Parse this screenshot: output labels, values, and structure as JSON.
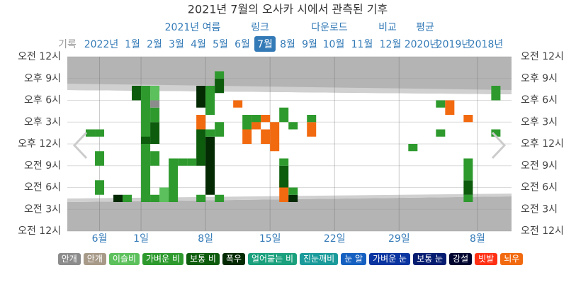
{
  "chart_data": {
    "type": "heatmap",
    "title": "2021년 7월의 오사카 시에서 관측된 기후",
    "nav_links": [
      "2021년 여름",
      "링크",
      "다운로드",
      "비교",
      "평균"
    ],
    "tabs": [
      "기록",
      "2022년",
      "1월",
      "2월",
      "3월",
      "4월",
      "5월",
      "6월",
      "7월",
      "8월",
      "9월",
      "10월",
      "11월",
      "12월",
      "2020년",
      "2019년",
      "2018년"
    ],
    "active_tab": 8,
    "xlim": [
      -8,
      40.2
    ],
    "xticks": [
      {
        "value": -4.5,
        "label": "6월"
      },
      {
        "value": 0,
        "label": "1일"
      },
      {
        "value": 7,
        "label": "8일"
      },
      {
        "value": 14,
        "label": "15일"
      },
      {
        "value": 21,
        "label": "22일"
      },
      {
        "value": 28,
        "label": "29일"
      },
      {
        "value": 36.5,
        "label": "8월"
      }
    ],
    "ylim": [
      0,
      24
    ],
    "yticks": [
      {
        "value": 0,
        "label": "오전 12시"
      },
      {
        "value": 3,
        "label": "오전 3시"
      },
      {
        "value": 6,
        "label": "오전 6시"
      },
      {
        "value": 9,
        "label": "오전 9시"
      },
      {
        "value": 12,
        "label": "오후 12시"
      },
      {
        "value": 15,
        "label": "오후 3시"
      },
      {
        "value": 18,
        "label": "오후 6시"
      },
      {
        "value": 21,
        "label": "오후 9시"
      },
      {
        "value": 24,
        "label": "오전 12시"
      }
    ],
    "legend": [
      {
        "name": "안개",
        "color": "#8c8c8c"
      },
      {
        "name": "안개",
        "color": "#a89a88"
      },
      {
        "name": "이슬비",
        "color": "#5cc05c"
      },
      {
        "name": "가벼운 비",
        "color": "#2e9a2e"
      },
      {
        "name": "보통 비",
        "color": "#0d5c0d"
      },
      {
        "name": "폭우",
        "color": "#032a03"
      },
      {
        "name": "얼어붙는 비",
        "color": "#1aa07c"
      },
      {
        "name": "진눈깨비",
        "color": "#1a9a9a"
      },
      {
        "name": "눈 알",
        "color": "#1560c0"
      },
      {
        "name": "가벼운 눈",
        "color": "#0a34a0"
      },
      {
        "name": "보통 눈",
        "color": "#061c70"
      },
      {
        "name": "강설",
        "color": "#000530"
      },
      {
        "name": "빗발",
        "color": "#ff3014"
      },
      {
        "name": "뇌우",
        "color": "#f26a10"
      }
    ],
    "cells": [
      [
        -1,
        18,
        2,
        4
      ],
      [
        0,
        4,
        16,
        3
      ],
      [
        0,
        12,
        1,
        4
      ],
      [
        1,
        4,
        1,
        3
      ],
      [
        1,
        9,
        2,
        3
      ],
      [
        1,
        12,
        3,
        4
      ],
      [
        1,
        15,
        2,
        3
      ],
      [
        1,
        18,
        2,
        2
      ],
      [
        1,
        17,
        1,
        0
      ],
      [
        -6,
        13,
        1,
        3
      ],
      [
        -5,
        13,
        1,
        3
      ],
      [
        -5,
        9,
        2,
        3
      ],
      [
        -5,
        5,
        2,
        3
      ],
      [
        -3,
        4,
        1,
        5
      ],
      [
        -2,
        4,
        1,
        3
      ],
      [
        2,
        4,
        2,
        2
      ],
      [
        3,
        4,
        6,
        3
      ],
      [
        4,
        9,
        1,
        3
      ],
      [
        5,
        9,
        1,
        3
      ],
      [
        6,
        4,
        1,
        3
      ],
      [
        6,
        9,
        5,
        4
      ],
      [
        6,
        17,
        3,
        5
      ],
      [
        6,
        14,
        2,
        13
      ],
      [
        7,
        5,
        8,
        5
      ],
      [
        7,
        13,
        1,
        3
      ],
      [
        7,
        16,
        4,
        3
      ],
      [
        8,
        4,
        1,
        3
      ],
      [
        8,
        13,
        2,
        3
      ],
      [
        8,
        19,
        2,
        4
      ],
      [
        8,
        21,
        1,
        3
      ],
      [
        10,
        17,
        1,
        13
      ],
      [
        11,
        12,
        2,
        13
      ],
      [
        11,
        14,
        2,
        3
      ],
      [
        12,
        14,
        2,
        13
      ],
      [
        12,
        15,
        1,
        3
      ],
      [
        13,
        12,
        2,
        13
      ],
      [
        13,
        15,
        1,
        13
      ],
      [
        14,
        11,
        4,
        13
      ],
      [
        15,
        4,
        3,
        13
      ],
      [
        15,
        6,
        3,
        4
      ],
      [
        15,
        9,
        1,
        3
      ],
      [
        15,
        15,
        2,
        3
      ],
      [
        16,
        4,
        1,
        5
      ],
      [
        16,
        5,
        1,
        3
      ],
      [
        16,
        14,
        1,
        3
      ],
      [
        18,
        13,
        2,
        13
      ],
      [
        18,
        15,
        1,
        3
      ],
      [
        29,
        11,
        1,
        3
      ],
      [
        32,
        13,
        1,
        3
      ],
      [
        32,
        17,
        1,
        3
      ],
      [
        33,
        16,
        2,
        13
      ],
      [
        35,
        4,
        1,
        3
      ],
      [
        35,
        5,
        2,
        4
      ],
      [
        35,
        7,
        3,
        3
      ],
      [
        35,
        15,
        1,
        13
      ],
      [
        38,
        13,
        1,
        3
      ],
      [
        38,
        18,
        2,
        3
      ]
    ]
  }
}
